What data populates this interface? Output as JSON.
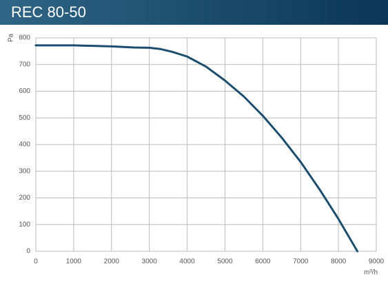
{
  "chart_data": {
    "type": "line",
    "title": "REC 80-50",
    "y_label": "Pa",
    "x_label": "m³/h",
    "x": [
      0,
      1000,
      2000,
      2600,
      3000,
      3300,
      3600,
      4000,
      4500,
      5000,
      5500,
      6000,
      6500,
      7000,
      7500,
      8000,
      8500
    ],
    "series": [
      {
        "name": "REC 80-50",
        "color": "#1b4d6e",
        "values": [
          772,
          772,
          768,
          764,
          763,
          758,
          748,
          730,
          692,
          640,
          580,
          508,
          426,
          335,
          232,
          121,
          0
        ]
      }
    ],
    "xlim": [
      0,
      9000
    ],
    "xticks": [
      0,
      1000,
      2000,
      3000,
      4000,
      5000,
      6000,
      7000,
      8000,
      9000
    ],
    "ylim": [
      0,
      800
    ],
    "yticks": [
      0,
      100,
      200,
      300,
      400,
      500,
      600,
      700,
      800
    ],
    "grid": true
  }
}
